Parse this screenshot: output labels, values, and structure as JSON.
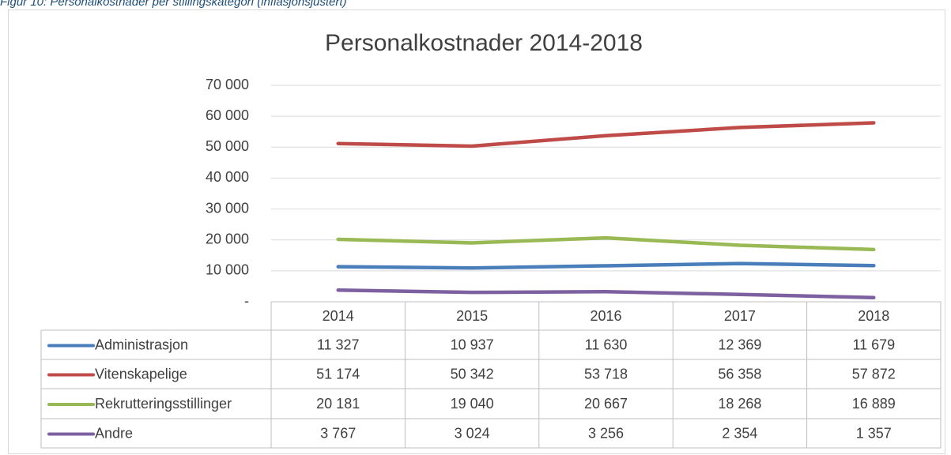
{
  "caption": "Figur 10: Personalkostnader per stillingskategori (inflasjonsjustert)",
  "chart_data": {
    "type": "line",
    "title": "Personalkostnader 2014-2018",
    "categories": [
      "2014",
      "2015",
      "2016",
      "2017",
      "2018"
    ],
    "series": [
      {
        "name": "Administrasjon",
        "color": "#4a7ebb",
        "values": [
          11327,
          10937,
          11630,
          12369,
          11679
        ],
        "value_labels": [
          "11 327",
          "10 937",
          "11 630",
          "12 369",
          "11 679"
        ]
      },
      {
        "name": "Vitenskapelige",
        "color": "#be4b48",
        "values": [
          51174,
          50342,
          53718,
          56358,
          57872
        ],
        "value_labels": [
          "51 174",
          "50 342",
          "53 718",
          "56 358",
          "57 872"
        ]
      },
      {
        "name": "Rekrutteringsstillinger",
        "color": "#98b954",
        "values": [
          20181,
          19040,
          20667,
          18268,
          16889
        ],
        "value_labels": [
          "20 181",
          "19 040",
          "20 667",
          "18 268",
          "16 889"
        ]
      },
      {
        "name": "Andre",
        "color": "#7d60a0",
        "values": [
          3767,
          3024,
          3256,
          2354,
          1357
        ],
        "value_labels": [
          "3 767",
          "3 024",
          "3 256",
          "2 354",
          "1 357"
        ]
      }
    ],
    "ylim": [
      0,
      70000
    ],
    "yticks": [
      {
        "value": 0,
        "label": "-"
      },
      {
        "value": 10000,
        "label": "10 000"
      },
      {
        "value": 20000,
        "label": "20 000"
      },
      {
        "value": 30000,
        "label": "30 000"
      },
      {
        "value": 40000,
        "label": "40 000"
      },
      {
        "value": 50000,
        "label": "50 000"
      },
      {
        "value": 60000,
        "label": "60 000"
      },
      {
        "value": 70000,
        "label": "70 000"
      }
    ],
    "grid": true
  }
}
